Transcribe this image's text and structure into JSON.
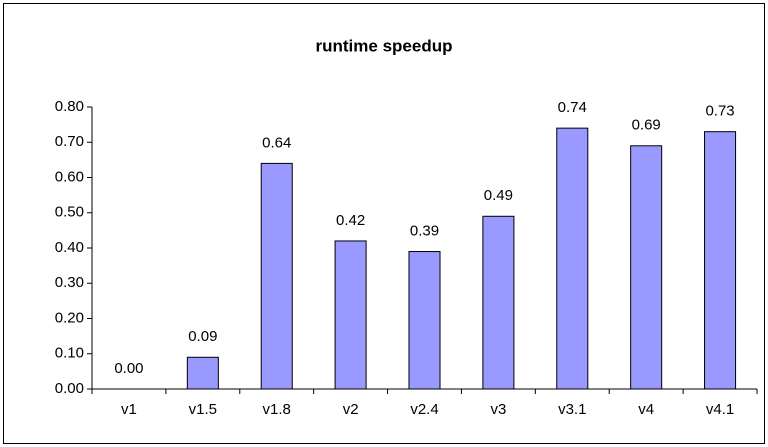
{
  "chart_data": {
    "type": "bar",
    "title": "runtime speedup",
    "categories": [
      "v1",
      "v1.5",
      "v1.8",
      "v2",
      "v2.4",
      "v3",
      "v3.1",
      "v4",
      "v4.1"
    ],
    "values": [
      0,
      0.09,
      0.64,
      0.42,
      0.39,
      0.49,
      0.74,
      0.69,
      0.73
    ],
    "value_labels": [
      "0.00",
      "0.09",
      "0.64",
      "0.42",
      "0.39",
      "0.49",
      "0.74",
      "0.69",
      "0.73"
    ],
    "color": "#9999ff",
    "ylim": [
      0,
      0.8
    ],
    "yticks": [
      {
        "value": 0,
        "label": "0.00"
      },
      {
        "value": 0.1,
        "label": "0.10"
      },
      {
        "value": 0.2,
        "label": "0.20"
      },
      {
        "value": 0.3,
        "label": "0.30"
      },
      {
        "value": 0.4,
        "label": "0.40"
      },
      {
        "value": 0.5,
        "label": "0.50"
      },
      {
        "value": 0.6,
        "label": "0.60"
      },
      {
        "value": 0.7,
        "label": "0.70"
      },
      {
        "value": 0.8,
        "label": "0.80"
      }
    ],
    "grid": false
  }
}
